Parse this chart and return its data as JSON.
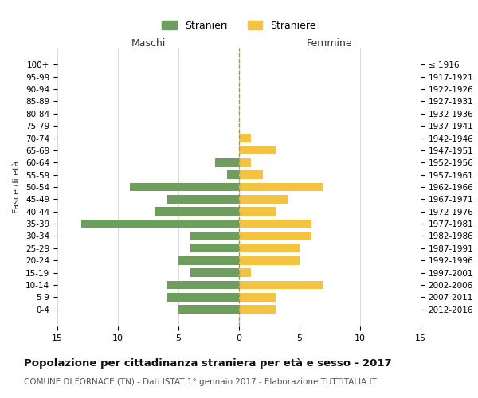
{
  "age_groups": [
    "0-4",
    "5-9",
    "10-14",
    "15-19",
    "20-24",
    "25-29",
    "30-34",
    "35-39",
    "40-44",
    "45-49",
    "50-54",
    "55-59",
    "60-64",
    "65-69",
    "70-74",
    "75-79",
    "80-84",
    "85-89",
    "90-94",
    "95-99",
    "100+"
  ],
  "birth_years": [
    "2012-2016",
    "2007-2011",
    "2002-2006",
    "1997-2001",
    "1992-1996",
    "1987-1991",
    "1982-1986",
    "1977-1981",
    "1972-1976",
    "1967-1971",
    "1962-1966",
    "1957-1961",
    "1952-1956",
    "1947-1951",
    "1942-1946",
    "1937-1941",
    "1932-1936",
    "1927-1931",
    "1922-1926",
    "1917-1921",
    "≤ 1916"
  ],
  "males": [
    5,
    6,
    6,
    4,
    5,
    4,
    4,
    13,
    7,
    6,
    9,
    1,
    2,
    0,
    0,
    0,
    0,
    0,
    0,
    0,
    0
  ],
  "females": [
    3,
    3,
    7,
    1,
    5,
    5,
    6,
    6,
    3,
    4,
    7,
    2,
    1,
    3,
    1,
    0,
    0,
    0,
    0,
    0,
    0
  ],
  "male_color": "#6d9e5e",
  "female_color": "#f5c342",
  "title": "Popolazione per cittadinanza straniera per età e sesso - 2017",
  "subtitle": "COMUNE DI FORNACE (TN) - Dati ISTAT 1° gennaio 2017 - Elaborazione TUTTITALIA.IT",
  "xlabel_left": "Maschi",
  "xlabel_right": "Femmine",
  "ylabel_left": "Fasce di età",
  "legend_male": "Stranieri",
  "legend_female": "Straniere",
  "xlim": 15,
  "background_color": "#ffffff",
  "grid_color": "#cccccc"
}
